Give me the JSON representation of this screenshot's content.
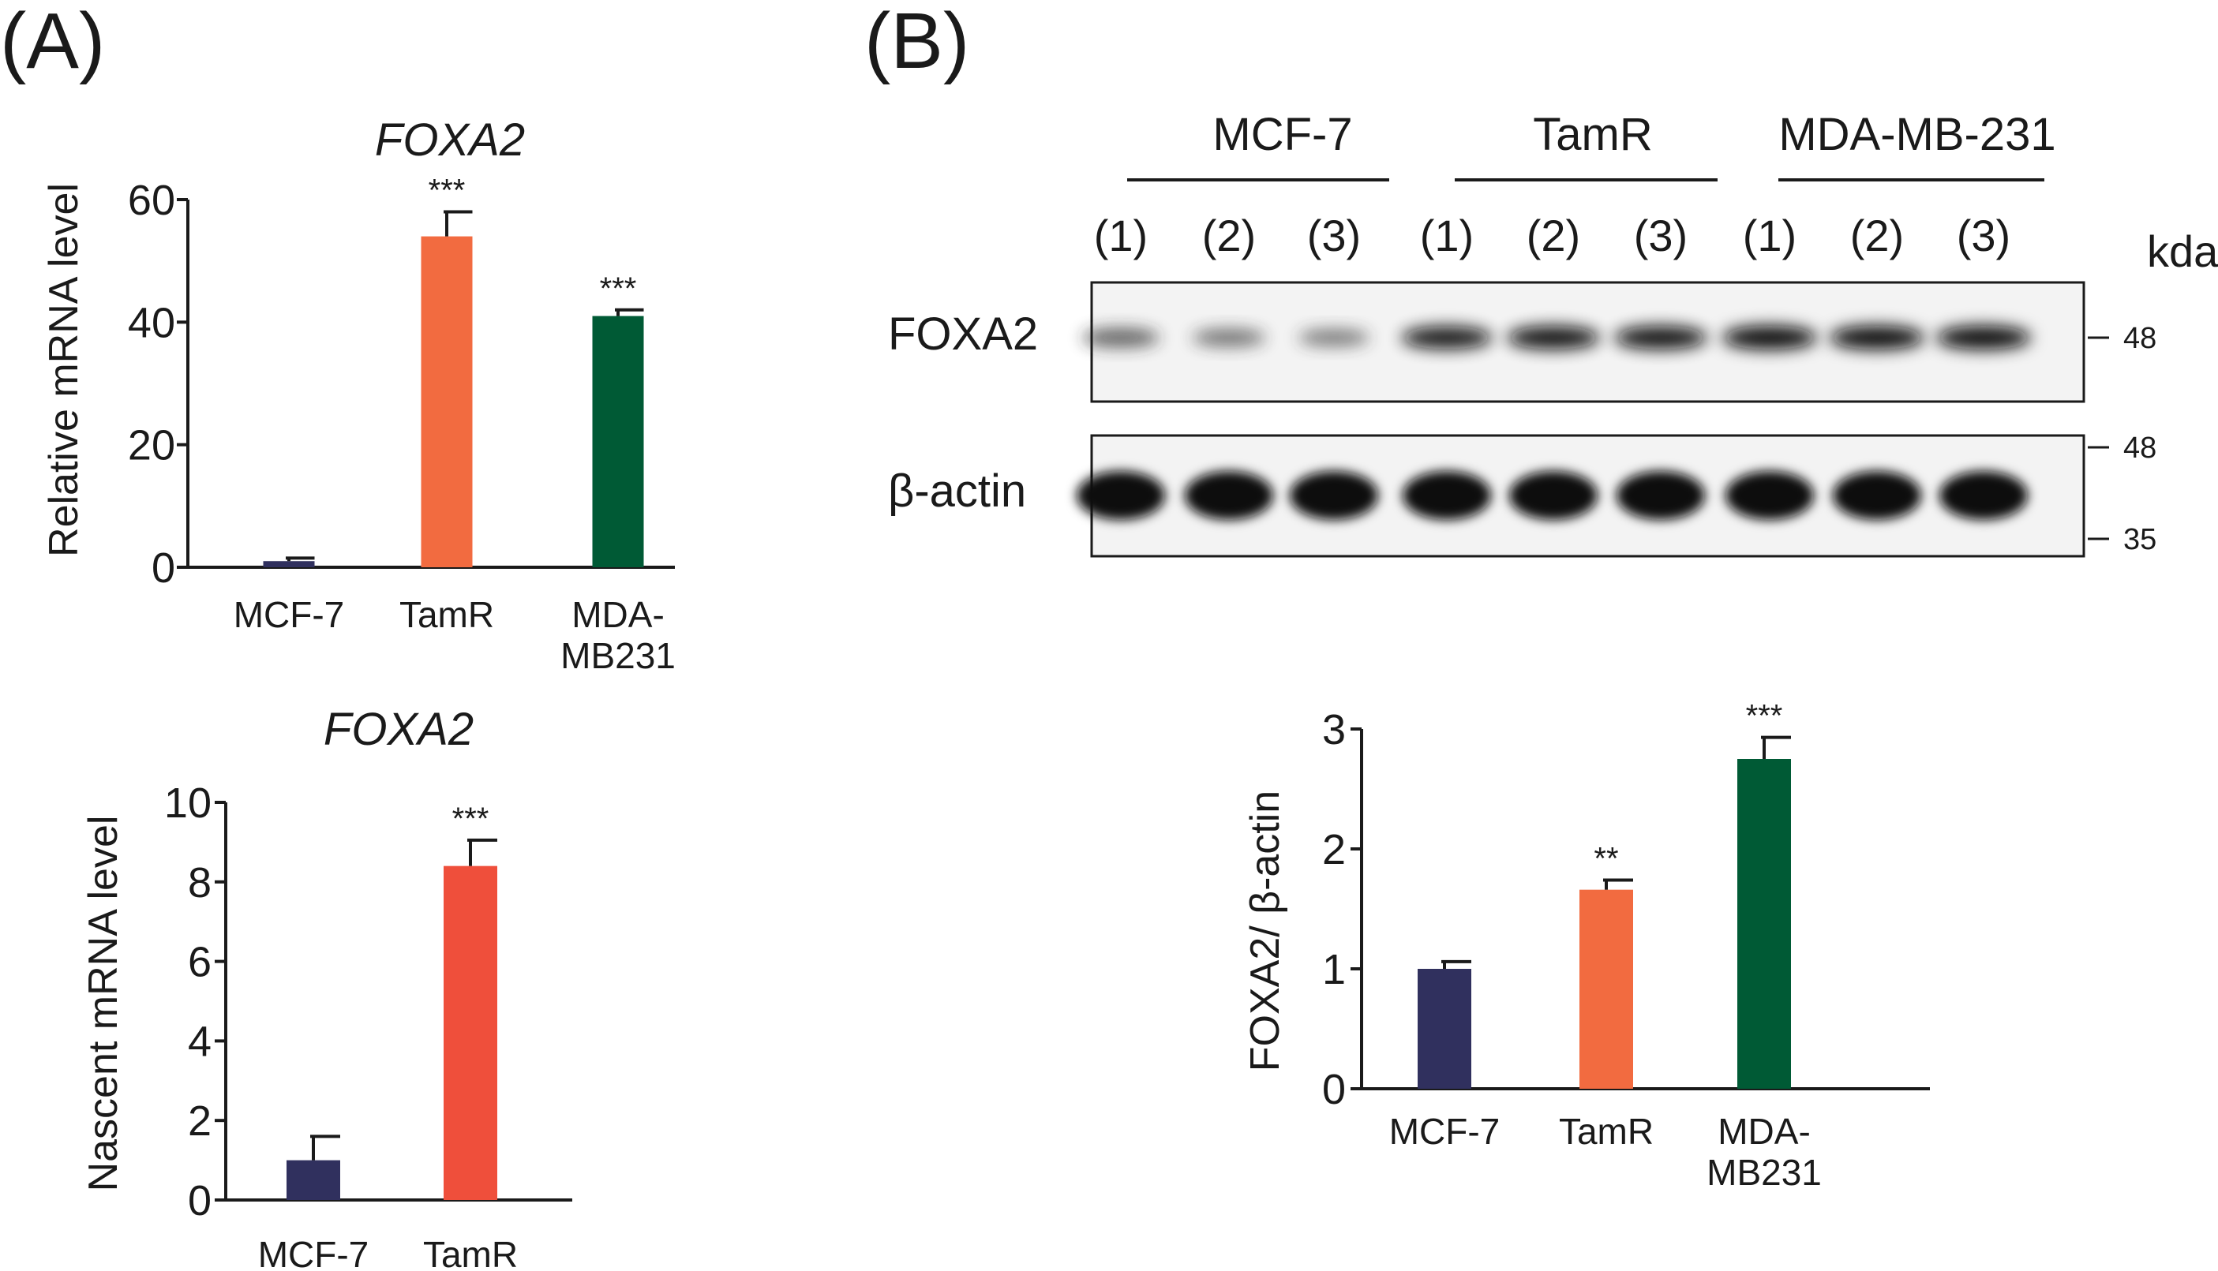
{
  "panel_a_label": "(A)",
  "panel_b_label": "(B)",
  "chart_data": [
    {
      "id": "chart1",
      "type": "bar",
      "title": "FOXA2",
      "ylabel": "Relative mRNA level",
      "xlabel": "",
      "categories": [
        "MCF-7",
        "TamR",
        "MDA-MB231"
      ],
      "category_lines": [
        [
          "MCF-7"
        ],
        [
          "TamR"
        ],
        [
          "MDA-",
          "MB231"
        ]
      ],
      "values": [
        1,
        54,
        41
      ],
      "errors": [
        0.5,
        4,
        1
      ],
      "significance": [
        "",
        "***",
        "***"
      ],
      "colors": [
        "#30305e",
        "#f26b40",
        "#005a35"
      ],
      "ylim": [
        0,
        60
      ],
      "yticks": [
        0,
        20,
        40,
        60
      ]
    },
    {
      "id": "chart2",
      "type": "bar",
      "title": "FOXA2",
      "ylabel": "Nascent mRNA level",
      "xlabel": "",
      "categories": [
        "MCF-7",
        "TamR"
      ],
      "category_lines": [
        [
          "MCF-7"
        ],
        [
          "TamR"
        ]
      ],
      "values": [
        1,
        8.4
      ],
      "errors": [
        0.6,
        0.65
      ],
      "significance": [
        "",
        "***"
      ],
      "colors": [
        "#30305e",
        "#ef4f3b"
      ],
      "ylim": [
        0,
        10
      ],
      "yticks": [
        0,
        2,
        4,
        6,
        8,
        10
      ]
    },
    {
      "id": "chart3",
      "type": "bar",
      "title": "",
      "ylabel": "FOXA2/ β-actin",
      "xlabel": "",
      "categories": [
        "MCF-7",
        "TamR",
        "MDA-MB231"
      ],
      "category_lines": [
        [
          "MCF-7"
        ],
        [
          "TamR"
        ],
        [
          "MDA-",
          "MB231"
        ]
      ],
      "values": [
        1,
        1.66,
        2.75
      ],
      "errors": [
        0.06,
        0.08,
        0.18
      ],
      "significance": [
        "",
        "**",
        "***"
      ],
      "colors": [
        "#30305e",
        "#f26b40",
        "#005a35"
      ],
      "ylim": [
        0,
        3
      ],
      "yticks": [
        0,
        1,
        2,
        3
      ]
    }
  ],
  "blot": {
    "groups": [
      "MCF-7",
      "TamR",
      "MDA-MB-231"
    ],
    "lanes": [
      "(1)",
      "(2)",
      "(3)",
      "(1)",
      "(2)",
      "(3)",
      "(1)",
      "(2)",
      "(3)"
    ],
    "unit": "kda",
    "rows": [
      {
        "label": "FOXA2",
        "markers": [
          "48"
        ],
        "band_intensity": [
          0.55,
          0.45,
          0.4,
          0.9,
          0.95,
          0.95,
          1,
          1,
          1
        ]
      },
      {
        "label": "β-actin",
        "markers": [
          "48",
          "35"
        ],
        "band_intensity": [
          1,
          1,
          1,
          1,
          1,
          1,
          1,
          1,
          1
        ]
      }
    ]
  }
}
